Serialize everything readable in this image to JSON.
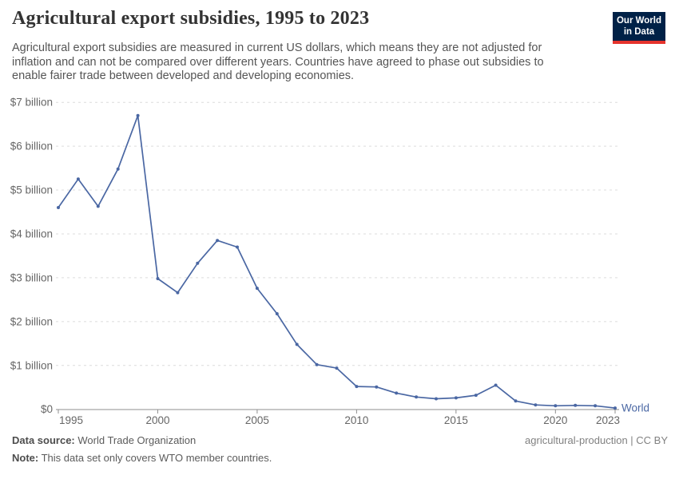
{
  "header": {
    "title": "Agricultural export subsidies, 1995 to 2023",
    "subtitle": "Agricultural export subsidies are measured in current US dollars, which means they are not adjusted for inflation and can not be compared over different years. Countries have agreed to phase out subsidies to enable fairer trade between developed and developing economies.",
    "logo": {
      "line1": "Our World",
      "line2": "in Data",
      "bg_color": "#002147",
      "bar_color": "#E5332D"
    }
  },
  "chart_data": {
    "type": "line",
    "title": "Agricultural export subsidies, 1995 to 2023",
    "xlabel": "",
    "ylabel": "",
    "x": [
      1995,
      1996,
      1997,
      1998,
      1999,
      2000,
      2001,
      2002,
      2003,
      2004,
      2005,
      2006,
      2007,
      2008,
      2009,
      2010,
      2011,
      2012,
      2013,
      2014,
      2015,
      2016,
      2017,
      2018,
      2019,
      2020,
      2021,
      2022,
      2023
    ],
    "series": [
      {
        "name": "World",
        "color": "#4a67a3",
        "unit": "billion US$",
        "values": [
          4.6,
          5.25,
          4.63,
          5.48,
          6.7,
          2.98,
          2.66,
          3.33,
          3.85,
          3.7,
          2.76,
          2.18,
          1.48,
          1.02,
          0.94,
          0.52,
          0.51,
          0.37,
          0.28,
          0.24,
          0.26,
          0.32,
          0.55,
          0.19,
          0.1,
          0.08,
          0.09,
          0.08,
          0.03
        ]
      }
    ],
    "xlim": [
      1995,
      2023
    ],
    "ylim": [
      0,
      7
    ],
    "x_ticks": [
      1995,
      2000,
      2005,
      2010,
      2015,
      2020,
      2023
    ],
    "y_ticks": [
      {
        "value": 0,
        "label": "$0"
      },
      {
        "value": 1,
        "label": "$1 billion"
      },
      {
        "value": 2,
        "label": "$2 billion"
      },
      {
        "value": 3,
        "label": "$3 billion"
      },
      {
        "value": 4,
        "label": "$4 billion"
      },
      {
        "value": 5,
        "label": "$5 billion"
      },
      {
        "value": 6,
        "label": "$6 billion"
      },
      {
        "value": 7,
        "label": "$7 billion"
      }
    ],
    "grid": "horizontal-dashed",
    "grid_color": "#dcdcdc",
    "axis_color": "#8f8f8f",
    "tick_label_color": "#666666",
    "legend_position": "end-of-line"
  },
  "footer": {
    "source_label": "Data source:",
    "source_value": "World Trade Organization",
    "note_label": "Note:",
    "note_value": "This data set only covers WTO member countries.",
    "right_text": "agricultural-production | CC BY"
  }
}
